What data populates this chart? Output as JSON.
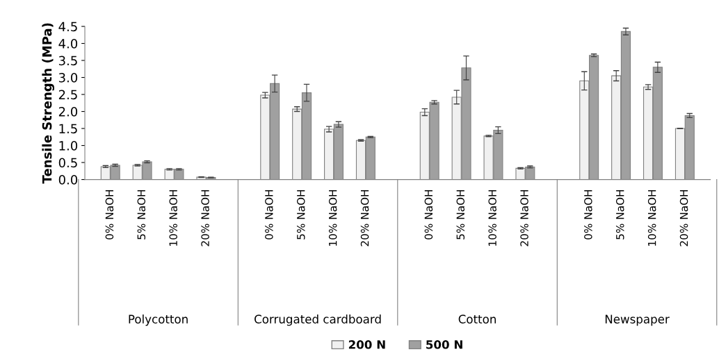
{
  "chart_data": {
    "type": "bar",
    "ylabel": "Tensile Strength (MPa)",
    "categories": [
      "0% NaOH",
      "5% NaOH",
      "10% NaOH",
      "20% NaOH",
      "0% NaOH",
      "5% NaOH",
      "10% NaOH",
      "20% NaOH",
      "0% NaOH",
      "5% NaOH",
      "10% NaOH",
      "20% NaOH",
      "0% NaOH",
      "5% NaOH",
      "10% NaOH",
      "20% NaOH"
    ],
    "annotations": [
      "Polycotton",
      "Corrugated cardboard",
      "Cotton",
      "Newspaper"
    ],
    "series": [
      {
        "name": "200 N",
        "color": "#f0f0f0",
        "values": [
          0.38,
          0.42,
          0.3,
          0.07,
          2.48,
          2.07,
          1.48,
          1.15,
          1.98,
          2.42,
          1.28,
          0.33,
          2.9,
          3.05,
          2.72,
          1.5
        ],
        "errors": [
          0.03,
          0.02,
          0.02,
          0.01,
          0.08,
          0.07,
          0.08,
          0.02,
          0.1,
          0.2,
          0.02,
          0.02,
          0.27,
          0.15,
          0.07,
          null
        ]
      },
      {
        "name": "500 N",
        "color": "#a0a0a0",
        "values": [
          0.42,
          0.52,
          0.3,
          0.06,
          2.82,
          2.55,
          1.62,
          1.25,
          2.27,
          3.28,
          1.45,
          0.37,
          3.65,
          4.35,
          3.3,
          1.88
        ],
        "errors": [
          0.03,
          0.03,
          0.02,
          0.01,
          0.25,
          0.25,
          0.08,
          0.02,
          0.05,
          0.35,
          0.1,
          0.03,
          0.04,
          0.1,
          0.15,
          0.06
        ]
      }
    ],
    "ylim": [
      0,
      4.5
    ],
    "yticks": [
      {
        "value": 0,
        "label": "0.0"
      },
      0.5,
      {
        "value": 1,
        "label": "1.0"
      },
      1.5,
      {
        "value": 2,
        "label": "2.0"
      },
      2.5,
      {
        "value": 3,
        "label": "3.0"
      },
      3.5,
      {
        "value": 4,
        "label": "4.0"
      },
      4.5
    ],
    "grid": false,
    "legend": "bottom"
  }
}
